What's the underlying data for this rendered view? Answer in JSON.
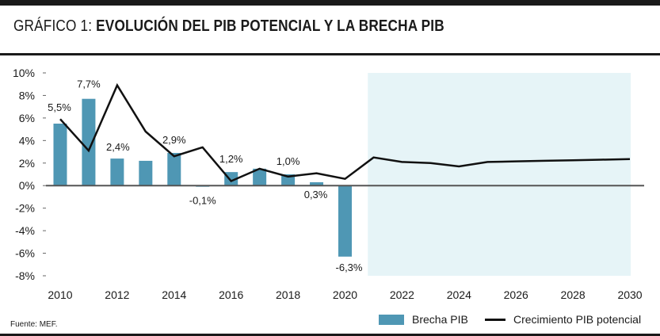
{
  "title": {
    "prefix": "GRÁFICO 1: ",
    "main": "EVOLUCIÓN DEL PIB POTENCIAL Y LA BRECHA PIB"
  },
  "source": "Fuente: MEF.",
  "legend": {
    "bar_label": "Brecha PIB",
    "line_label": "Crecimiento PIB potencial"
  },
  "colors": {
    "bar": "#4f97b4",
    "line": "#111111",
    "projection_shade": "#e6f4f7",
    "zero_line": "#555555",
    "grid": "#dcdcdc"
  },
  "chart_data": {
    "type": "bar",
    "title": "EVOLUCIÓN DEL PIB POTENCIAL Y LA BRECHA PIB",
    "xlabel": "",
    "ylabel": "",
    "ylim": [
      -8,
      10
    ],
    "yticks": [
      -8,
      -6,
      -4,
      -2,
      0,
      2,
      4,
      6,
      8,
      10
    ],
    "ytick_labels": [
      "-8%",
      "-6%",
      "-4%",
      "-2%",
      "0%",
      "2%",
      "4%",
      "6%",
      "8%",
      "10%"
    ],
    "xlim": [
      2009.5,
      2030.5
    ],
    "xtick_labels": [
      "2010",
      "2012",
      "2014",
      "2016",
      "2018",
      "2020",
      "2022",
      "2024",
      "2026",
      "2028",
      "2030"
    ],
    "projection_start": 2020.8,
    "series": [
      {
        "name": "Brecha PIB",
        "type": "bar",
        "x": [
          2010,
          2011,
          2012,
          2013,
          2014,
          2015,
          2016,
          2017,
          2018,
          2019,
          2020
        ],
        "values": [
          5.5,
          7.7,
          2.4,
          2.2,
          2.9,
          -0.1,
          1.2,
          1.5,
          1.0,
          0.3,
          -6.3
        ],
        "data_labels": {
          "2010": "5,5%",
          "2011": "7,7%",
          "2012": "2,4%",
          "2014": "2,9%",
          "2015": "-0,1%",
          "2016": "1,2%",
          "2018": "1,0%",
          "2019": "0,3%",
          "2020": "-6,3%"
        }
      },
      {
        "name": "Crecimiento PIB potencial",
        "type": "line",
        "x": [
          2010,
          2011,
          2012,
          2013,
          2014,
          2015,
          2016,
          2017,
          2018,
          2019,
          2020,
          2021,
          2022,
          2023,
          2024,
          2025,
          2026,
          2027,
          2028,
          2029,
          2030
        ],
        "values": [
          5.9,
          3.1,
          8.9,
          4.8,
          2.6,
          3.4,
          0.4,
          1.5,
          0.8,
          1.1,
          0.6,
          2.5,
          2.1,
          2.0,
          1.7,
          2.1,
          2.15,
          2.2,
          2.25,
          2.3,
          2.35
        ]
      }
    ]
  }
}
